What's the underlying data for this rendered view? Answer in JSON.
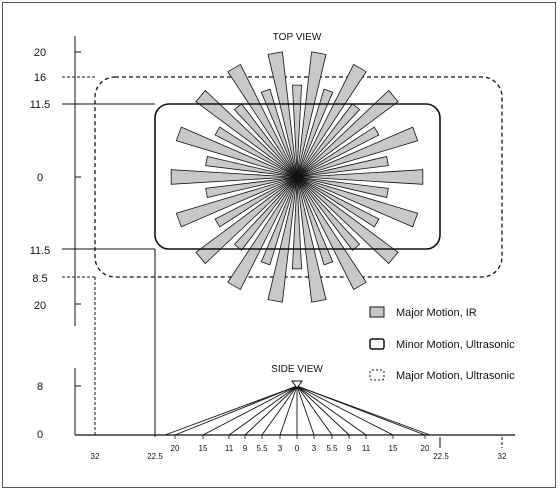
{
  "top_view": {
    "title": "TOP VIEW",
    "y_labels": [
      "20",
      "16",
      "11.5",
      "0",
      "11.5",
      "8.5",
      "20"
    ]
  },
  "side_view": {
    "title": "SIDE VIEW",
    "y_labels": [
      "8",
      "0"
    ],
    "ground_labels": [
      "20",
      "15",
      "11",
      "9",
      "5.5",
      "3",
      "0",
      "3",
      "5.5",
      "9",
      "11",
      "15",
      "20"
    ]
  },
  "bottom_axis": {
    "labels": [
      "32",
      "22.5",
      "22.5",
      "32"
    ]
  },
  "legend": {
    "items": [
      {
        "label": "Major Motion, IR",
        "swatch": "gray-box",
        "color": "#c8c8c8"
      },
      {
        "label": "Minor Motion, Ultrasonic",
        "swatch": "solid-rounded-box"
      },
      {
        "label": "Major Motion, Ultrasonic",
        "swatch": "dashed-rounded-box"
      }
    ]
  },
  "colors": {
    "ir_fill": "#c8c8c8",
    "line": "#111111"
  }
}
